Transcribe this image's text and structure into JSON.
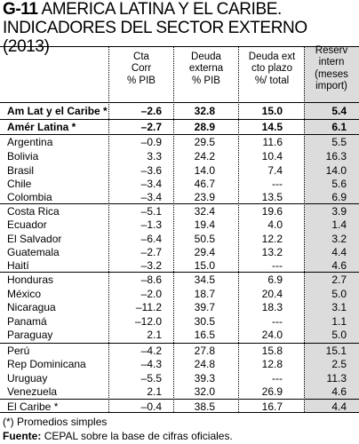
{
  "title": {
    "code": "G-11",
    "line1": "AMERICA LATINA Y EL CARIBE.",
    "line2": "INDICADORES DEL SECTOR EXTERNO (2013)"
  },
  "headers": [
    [
      "Cta",
      "Corr",
      "% PIB"
    ],
    [
      "Deuda",
      "externa",
      "% PIB"
    ],
    [
      "Deuda ext",
      "cto plazo",
      "%/ total"
    ],
    [
      "Reserv",
      "intern",
      "(meses",
      "import)"
    ]
  ],
  "summary_rows": [
    {
      "name": "Am Lat y el Caribe *",
      "v": [
        "–2.6",
        "32.8",
        "15.0",
        "5.4"
      ]
    },
    {
      "name": "Amér Latina *",
      "v": [
        "–2.7",
        "28.9",
        "14.5",
        "6.1"
      ]
    }
  ],
  "rows": [
    {
      "name": "Argentina",
      "v": [
        "–0.9",
        "29.5",
        "11.6",
        "5.5"
      ]
    },
    {
      "name": "Bolivia",
      "v": [
        "3.3",
        "24.2",
        "10.4",
        "16.3"
      ]
    },
    {
      "name": "Brasil",
      "v": [
        "–3.6",
        "14.0",
        "7.4",
        "14.0"
      ]
    },
    {
      "name": "Chile",
      "v": [
        "–3.4",
        "46.7",
        "---",
        "5.6"
      ]
    },
    {
      "name": "Colombia",
      "v": [
        "–3.4",
        "23.9",
        "13.5",
        "6.9"
      ]
    },
    {
      "name": "Costa Rica",
      "v": [
        "–5.1",
        "32.4",
        "19.6",
        "3.9"
      ]
    },
    {
      "name": "Ecuador",
      "v": [
        "–1.3",
        "19.4",
        "4.0",
        "1.4"
      ]
    },
    {
      "name": "El Salvador",
      "v": [
        "–6.4",
        "50.5",
        "12.2",
        "3.2"
      ]
    },
    {
      "name": "Guatemala",
      "v": [
        "–2.7",
        "29.4",
        "13.2",
        "4.4"
      ]
    },
    {
      "name": "Haití",
      "v": [
        "–3.2",
        "15.0",
        "---",
        "4.6"
      ]
    },
    {
      "name": "Honduras",
      "v": [
        "–8.6",
        "34.5",
        "6.9",
        "2.7"
      ]
    },
    {
      "name": "México",
      "v": [
        "–2.0",
        "18.7",
        "20.4",
        "5.0"
      ]
    },
    {
      "name": "Nicaragua",
      "v": [
        "–11.2",
        "39.7",
        "18.3",
        "3.1"
      ]
    },
    {
      "name": "Panamá",
      "v": [
        "–12.0",
        "30.5",
        "---",
        "1.1"
      ]
    },
    {
      "name": "Paraguay",
      "v": [
        "2.1",
        "16.5",
        "24.0",
        "5.0"
      ]
    },
    {
      "name": "Perú",
      "v": [
        "–4.2",
        "27.8",
        "15.8",
        "15.1"
      ]
    },
    {
      "name": "Rep Dominicana",
      "v": [
        "–4.3",
        "24.8",
        "12.8",
        "2.5"
      ]
    },
    {
      "name": "Uruguay",
      "v": [
        "–5.5",
        "39.3",
        "---",
        "11.3"
      ]
    },
    {
      "name": "Venezuela",
      "v": [
        "2.1",
        "32.0",
        "26.9",
        "4.6"
      ]
    },
    {
      "name": "El Caribe *",
      "v": [
        "–0.4",
        "38.5",
        "16.7",
        "4.4"
      ]
    }
  ],
  "footnote": "(*) Promedios simples",
  "source_label": "Fuente:",
  "source_text": "CEPAL sobre la base de cifras oficiales."
}
